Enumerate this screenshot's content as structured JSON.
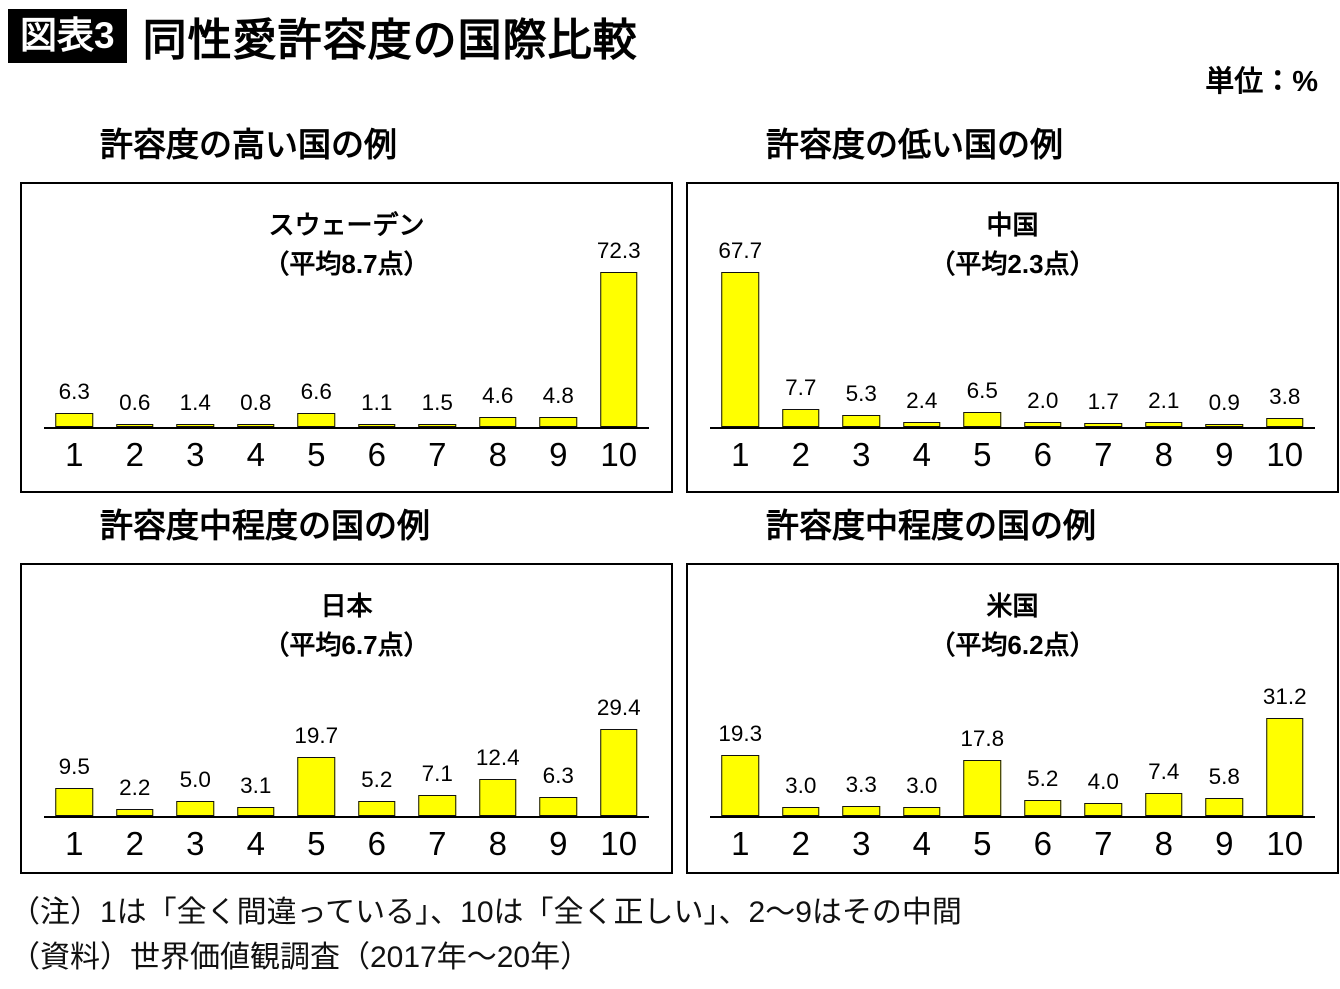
{
  "header": {
    "tag": "図表3",
    "title": "同性愛許容度の国際比較",
    "unit": "単位：%"
  },
  "colors": {
    "bar_fill": "#ffff00",
    "bar_border": "#111111",
    "tag_bg": "#000000",
    "tag_text": "#ffffff"
  },
  "chart_data": [
    {
      "id": "sweden",
      "type": "bar",
      "section_title": "許容度の高い国の例",
      "country": "スウェーデン",
      "subtitle": "（平均8.7点）",
      "categories": [
        "1",
        "2",
        "3",
        "4",
        "5",
        "6",
        "7",
        "8",
        "9",
        "10"
      ],
      "values": [
        6.3,
        0.6,
        1.4,
        0.8,
        6.6,
        1.1,
        1.5,
        4.6,
        4.8,
        72.3
      ],
      "ylim": [
        0,
        80
      ],
      "value_labels": true,
      "grid": false
    },
    {
      "id": "china",
      "type": "bar",
      "section_title": "許容度の低い国の例",
      "country": "中国",
      "subtitle": "（平均2.3点）",
      "categories": [
        "1",
        "2",
        "3",
        "4",
        "5",
        "6",
        "7",
        "8",
        "9",
        "10"
      ],
      "values": [
        67.7,
        7.7,
        5.3,
        2.4,
        6.5,
        2.0,
        1.7,
        2.1,
        0.9,
        3.8
      ],
      "ylim": [
        0,
        75
      ],
      "value_labels": true,
      "grid": false
    },
    {
      "id": "japan",
      "type": "bar",
      "section_title": "許容度中程度の国の例",
      "country": "日本",
      "subtitle": "（平均6.7点）",
      "categories": [
        "1",
        "2",
        "3",
        "4",
        "5",
        "6",
        "7",
        "8",
        "9",
        "10"
      ],
      "values": [
        9.5,
        2.2,
        5.0,
        3.1,
        19.7,
        5.2,
        7.1,
        12.4,
        6.3,
        29.4
      ],
      "ylim": [
        0,
        35
      ],
      "value_labels": true,
      "grid": false
    },
    {
      "id": "usa",
      "type": "bar",
      "section_title": "許容度中程度の国の例",
      "country": "米国",
      "subtitle": "（平均6.2点）",
      "categories": [
        "1",
        "2",
        "3",
        "4",
        "5",
        "6",
        "7",
        "8",
        "9",
        "10"
      ],
      "values": [
        19.3,
        3.0,
        3.3,
        3.0,
        17.8,
        5.2,
        4.0,
        7.4,
        5.8,
        31.2
      ],
      "ylim": [
        0,
        33
      ],
      "value_labels": true,
      "grid": false
    }
  ],
  "notes": [
    "（注）1は「全く間違っている」、10は「全く正しい」、2〜9はその中間",
    "（資料）世界価値観調査（2017年〜20年）"
  ]
}
